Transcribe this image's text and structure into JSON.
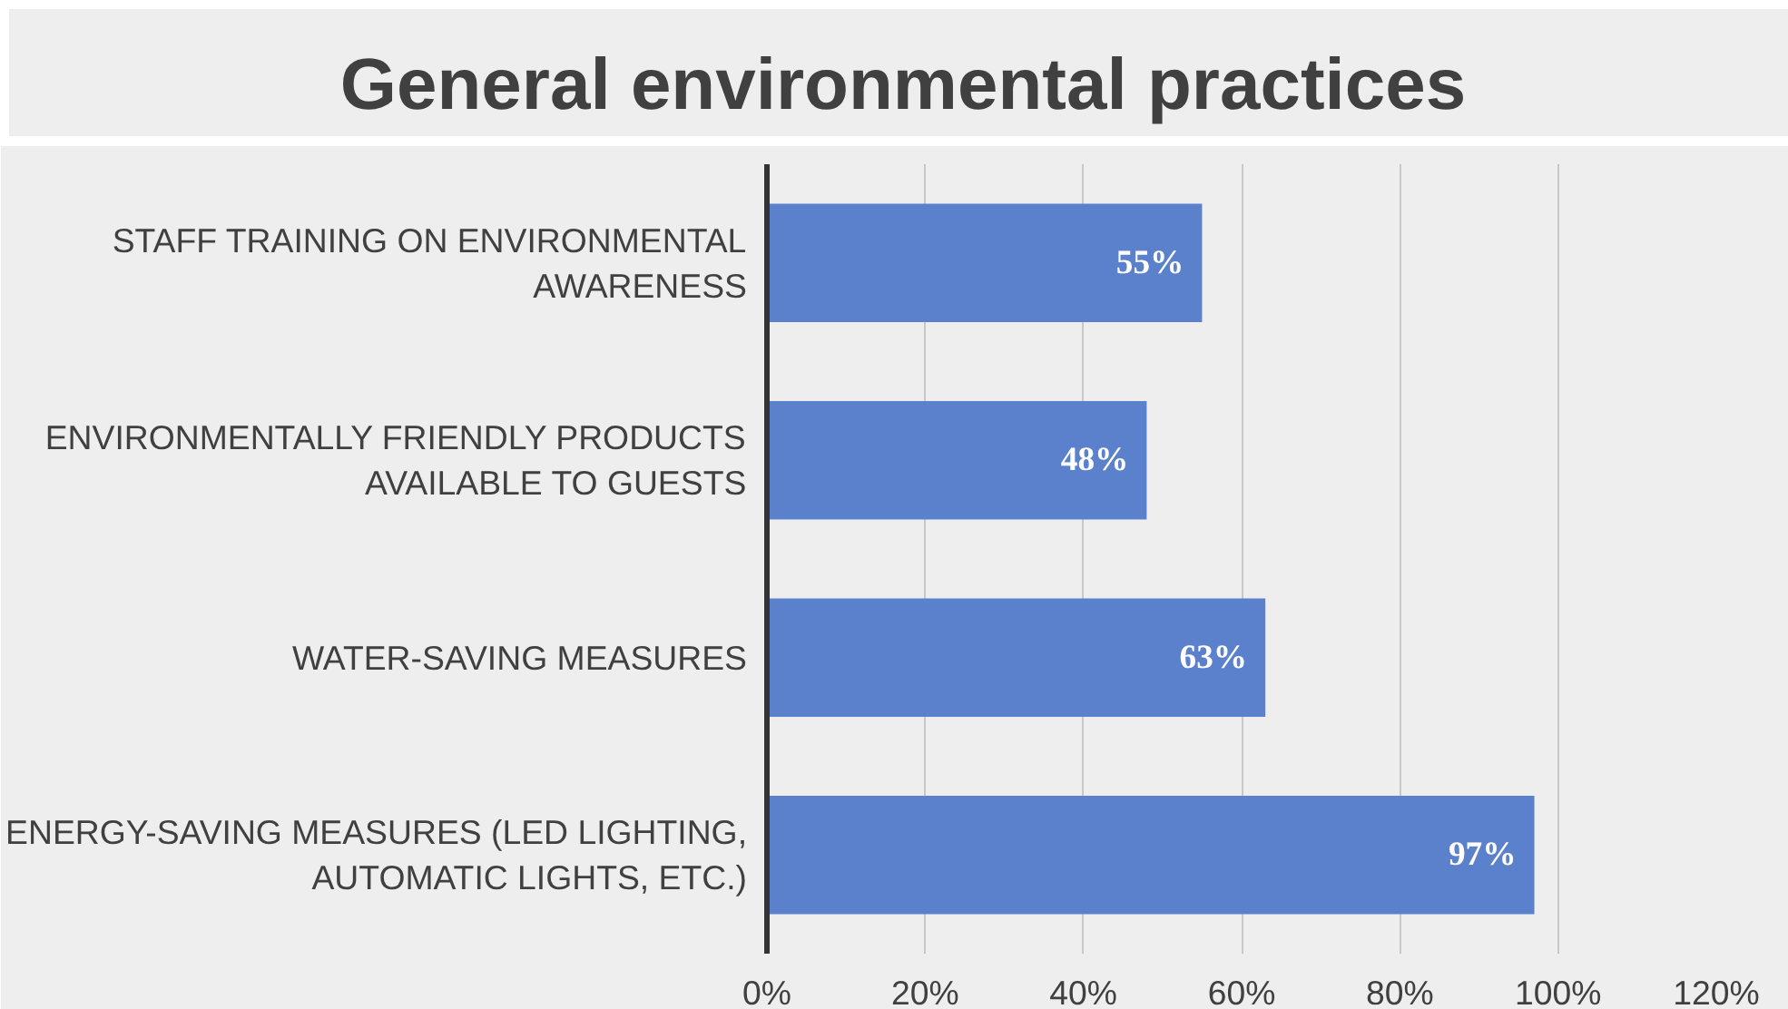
{
  "chart_data": {
    "type": "bar",
    "orientation": "horizontal",
    "title": "General environmental practices",
    "categories": [
      "STAFF TRAINING ON ENVIRONMENTAL AWARENESS",
      "ENVIRONMENTALLY FRIENDLY PRODUCTS AVAILABLE TO GUESTS",
      "WATER-SAVING MEASURES",
      "ENERGY-SAVING MEASURES (LED LIGHTING, AUTOMATIC LIGHTS, ETC.)"
    ],
    "values": [
      55,
      48,
      63,
      97
    ],
    "value_labels": [
      "55%",
      "48%",
      "63%",
      "97%"
    ],
    "color": "#5b80cc",
    "xlim": [
      0,
      120
    ],
    "xticks": [
      {
        "value": 0,
        "label": "0%"
      },
      {
        "value": 20,
        "label": "20%"
      },
      {
        "value": 40,
        "label": "40%"
      },
      {
        "value": 60,
        "label": "60%"
      },
      {
        "value": 80,
        "label": "80%"
      },
      {
        "value": 100,
        "label": "100%"
      },
      {
        "value": 120,
        "label": "120%"
      }
    ],
    "grid": "x"
  }
}
